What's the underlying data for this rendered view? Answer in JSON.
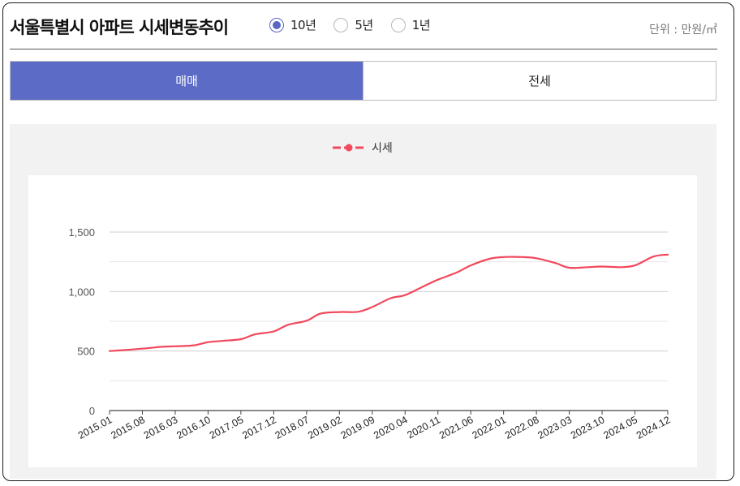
{
  "header": {
    "title": "서울특별시 아파트 시세변동추이",
    "unit": "단위 : 만원/㎡",
    "periods": [
      {
        "label": "10년",
        "selected": true
      },
      {
        "label": "5년",
        "selected": false
      },
      {
        "label": "1년",
        "selected": false
      }
    ]
  },
  "tabs": [
    {
      "label": "매매",
      "active": true
    },
    {
      "label": "전세",
      "active": false
    }
  ],
  "legend": {
    "label": "시세",
    "color": "#f2485c"
  },
  "colors": {
    "accent": "#5b6bc6",
    "series": "#f2485c"
  },
  "chart_data": {
    "type": "line",
    "title": "",
    "xlabel": "",
    "ylabel": "",
    "ylim": [
      0,
      1500
    ],
    "yticks": [
      0,
      500,
      1000,
      1500
    ],
    "ytick_labels": [
      "0",
      "500",
      "1,000",
      "1,500"
    ],
    "grid": true,
    "legend_position": "top-center",
    "x_tick_labels": [
      "2015.01",
      "2015.08",
      "2016.03",
      "2016.10",
      "2017.05",
      "2017.12",
      "2018.07",
      "2019.02",
      "2019.09",
      "2020.04",
      "2020.11",
      "2021.06",
      "2022.01",
      "2022.08",
      "2023.03",
      "2023.10",
      "2024.05",
      "2024.12"
    ],
    "series": [
      {
        "name": "시세",
        "x": [
          "2015.01",
          "2015.04",
          "2015.08",
          "2015.12",
          "2016.03",
          "2016.07",
          "2016.10",
          "2017.01",
          "2017.05",
          "2017.08",
          "2017.12",
          "2018.03",
          "2018.07",
          "2018.10",
          "2019.02",
          "2019.06",
          "2019.09",
          "2020.01",
          "2020.04",
          "2020.08",
          "2020.11",
          "2021.03",
          "2021.06",
          "2021.10",
          "2022.01",
          "2022.05",
          "2022.08",
          "2022.12",
          "2023.03",
          "2023.07",
          "2023.10",
          "2024.02",
          "2024.05",
          "2024.09",
          "2024.12"
        ],
        "values": [
          500,
          508,
          520,
          535,
          540,
          548,
          575,
          585,
          600,
          640,
          665,
          720,
          755,
          815,
          828,
          830,
          870,
          945,
          970,
          1045,
          1100,
          1160,
          1220,
          1275,
          1290,
          1290,
          1280,
          1240,
          1200,
          1205,
          1210,
          1205,
          1220,
          1295,
          1310
        ]
      }
    ]
  }
}
